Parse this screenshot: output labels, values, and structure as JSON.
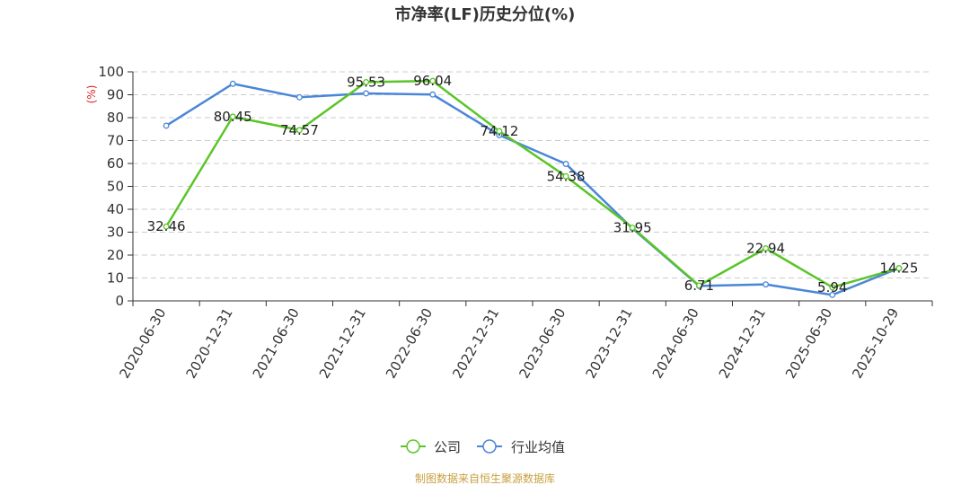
{
  "title": "市净率(LF)历史分位(%)",
  "footer": "制图数据来自恒生聚源数据库",
  "colors": {
    "company": "#5ac528",
    "industry": "#4a86d8",
    "footer": "#c8a040",
    "ylabel": "#e02020",
    "grid": "#cccccc",
    "axis": "#333333"
  },
  "chart_data": {
    "type": "line",
    "title": "市净率(LF)历史分位(%)",
    "xlabel": "",
    "ylabel": "(%)",
    "ylim": [
      0,
      100
    ],
    "yticks": [
      0,
      10,
      20,
      30,
      40,
      50,
      60,
      70,
      80,
      90,
      100
    ],
    "grid": true,
    "legend_position": "bottom",
    "categories": [
      "2020-06-30",
      "2020-12-31",
      "2021-06-30",
      "2021-12-31",
      "2022-06-30",
      "2022-12-31",
      "2023-06-30",
      "2023-12-31",
      "2024-06-30",
      "2024-12-31",
      "2025-06-30",
      "2025-10-29"
    ],
    "series": [
      {
        "name": "公司",
        "color": "#5ac528",
        "values": [
          32.46,
          80.45,
          74.57,
          95.53,
          96.04,
          74.12,
          54.38,
          31.95,
          6.71,
          22.94,
          5.94,
          14.25
        ],
        "labels": [
          "32.46",
          "80.45",
          "74.57",
          "95.53",
          "96.04",
          "74.12",
          "54.38",
          "31.95",
          "6.71",
          "22.94",
          "5.94",
          "14.25"
        ]
      },
      {
        "name": "行业均值",
        "color": "#4a86d8",
        "values": [
          76.5,
          94.8,
          88.9,
          90.6,
          90.1,
          72.4,
          59.8,
          31.6,
          6.5,
          7.2,
          2.6,
          14.3
        ]
      }
    ]
  }
}
